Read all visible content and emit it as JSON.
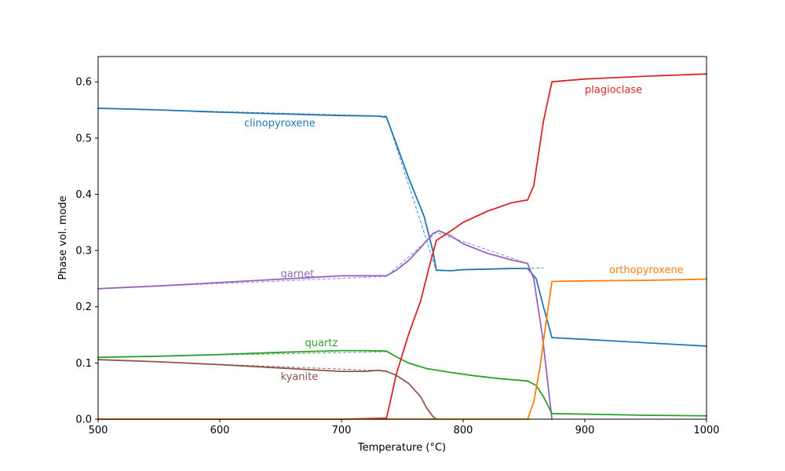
{
  "chart_data": {
    "type": "line",
    "title": "",
    "xlabel": "Temperature (°C)",
    "ylabel": "Phase vol. mode",
    "xlim": [
      500,
      1000
    ],
    "ylim": [
      0,
      0.645
    ],
    "xticks": [
      500,
      600,
      700,
      800,
      900,
      1000
    ],
    "yticks": [
      0.0,
      0.1,
      0.2,
      0.3,
      0.4,
      0.5,
      0.6
    ],
    "xtick_labels": [
      "500",
      "600",
      "700",
      "800",
      "900",
      "1000"
    ],
    "ytick_labels": [
      "0.0",
      "0.1",
      "0.2",
      "0.3",
      "0.4",
      "0.5",
      "0.6"
    ],
    "grid": false,
    "legend": "none",
    "series": [
      {
        "name": "clinopyroxene",
        "color": "#1f77b4",
        "label_at": [
          620,
          0.521
        ],
        "x": [
          500,
          550,
          600,
          650,
          700,
          730,
          737,
          745,
          755,
          768,
          775,
          778,
          790,
          800,
          820,
          840,
          853,
          860,
          866,
          873,
          900,
          950,
          1000
        ],
        "y": [
          0.553,
          0.55,
          0.546,
          0.543,
          0.54,
          0.539,
          0.537,
          0.49,
          0.43,
          0.36,
          0.3,
          0.265,
          0.264,
          0.266,
          0.267,
          0.268,
          0.268,
          0.25,
          0.2,
          0.145,
          0.142,
          0.136,
          0.13
        ],
        "dashed_x": [
          500,
          737,
          778,
          866
        ],
        "dashed_y": [
          0.553,
          0.539,
          0.264,
          0.269
        ]
      },
      {
        "name": "garnet",
        "color": "#9467bd",
        "label_at": [
          650,
          0.253
        ],
        "x": [
          500,
          550,
          600,
          650,
          700,
          720,
          737,
          745,
          755,
          765,
          775,
          780,
          790,
          800,
          820,
          840,
          853,
          858,
          865,
          873
        ],
        "y": [
          0.232,
          0.237,
          0.243,
          0.249,
          0.255,
          0.255,
          0.255,
          0.265,
          0.282,
          0.305,
          0.33,
          0.335,
          0.326,
          0.312,
          0.295,
          0.283,
          0.277,
          0.25,
          0.15,
          0.0
        ],
        "dashed_x": [
          500,
          737,
          778,
          853
        ],
        "dashed_y": [
          0.232,
          0.254,
          0.332,
          0.277
        ]
      },
      {
        "name": "quartz",
        "color": "#2ca02c",
        "label_at": [
          670,
          0.13
        ],
        "x": [
          500,
          550,
          600,
          650,
          700,
          720,
          737,
          745,
          755,
          770,
          790,
          810,
          830,
          853,
          860,
          866,
          873,
          900,
          950,
          1000
        ],
        "y": [
          0.11,
          0.112,
          0.115,
          0.119,
          0.122,
          0.122,
          0.121,
          0.111,
          0.1,
          0.09,
          0.083,
          0.077,
          0.072,
          0.068,
          0.06,
          0.04,
          0.01,
          0.009,
          0.007,
          0.006
        ],
        "dashed_x": [
          500,
          737
        ],
        "dashed_y": [
          0.11,
          0.12
        ]
      },
      {
        "name": "kyanite",
        "color": "#8c564b",
        "label_at": [
          650,
          0.07
        ],
        "x": [
          500,
          550,
          600,
          650,
          700,
          720,
          730,
          737,
          745,
          755,
          765,
          770,
          775,
          778
        ],
        "y": [
          0.106,
          0.102,
          0.097,
          0.091,
          0.085,
          0.085,
          0.087,
          0.085,
          0.078,
          0.064,
          0.04,
          0.02,
          0.005,
          0.0
        ],
        "dashed_x": [
          500,
          737
        ],
        "dashed_y": [
          0.106,
          0.086
        ]
      },
      {
        "name": "plagioclase",
        "color": "#d62728",
        "label_at": [
          900,
          0.58
        ],
        "x": [
          500,
          700,
          737,
          740,
          745,
          755,
          765,
          772,
          778,
          790,
          800,
          820,
          840,
          853,
          858,
          866,
          873,
          900,
          950,
          1000
        ],
        "y": [
          0.0,
          0.0,
          0.002,
          0.03,
          0.08,
          0.15,
          0.21,
          0.27,
          0.318,
          0.335,
          0.35,
          0.37,
          0.385,
          0.39,
          0.415,
          0.53,
          0.6,
          0.605,
          0.61,
          0.614
        ]
      },
      {
        "name": "orthopyroxene",
        "color": "#ff7f0e",
        "label_at": [
          920,
          0.26
        ],
        "x": [
          500,
          853,
          858,
          863,
          868,
          873,
          900,
          950,
          1000
        ],
        "y": [
          0.0,
          0.0,
          0.03,
          0.09,
          0.17,
          0.245,
          0.246,
          0.247,
          0.249
        ]
      },
      {
        "name": "",
        "color": "#bcbd22",
        "label_at": null,
        "x": [
          775,
          855
        ],
        "y": [
          0.0,
          0.0
        ]
      }
    ]
  }
}
